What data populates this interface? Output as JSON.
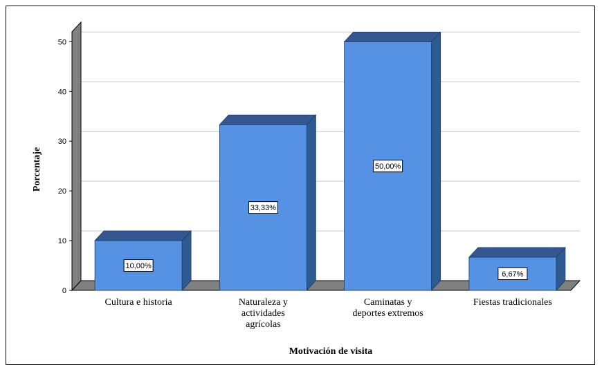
{
  "chart_data": {
    "type": "bar",
    "categories": [
      "Cultura e historia",
      "Naturaleza y actividades agrícolas",
      "Caminatas y deportes extremos",
      "Fiestas tradicionales"
    ],
    "category_lines": [
      [
        "Cultura e historia"
      ],
      [
        "Naturaleza y",
        "actividades",
        "agrícolas"
      ],
      [
        "Caminatas y",
        "deportes extremos"
      ],
      [
        "Fiestas tradicionales"
      ]
    ],
    "values": [
      10.0,
      33.33,
      50.0,
      6.67
    ],
    "data_labels": [
      "10,00%",
      "33,33%",
      "50,00%",
      "6,67%"
    ],
    "title": "",
    "xlabel": "Motivación de visita",
    "ylabel": "Porcentaje",
    "ylim": [
      0,
      52
    ],
    "yticks": [
      0,
      10,
      20,
      30,
      40,
      50
    ],
    "grid": true,
    "colors": {
      "bar_front": "#5592E4",
      "bar_top": "#35578F",
      "bar_side": "#2D5A8F",
      "floor": "#808080",
      "left_wall": "#808080",
      "grid": "#C8C8C8"
    }
  }
}
